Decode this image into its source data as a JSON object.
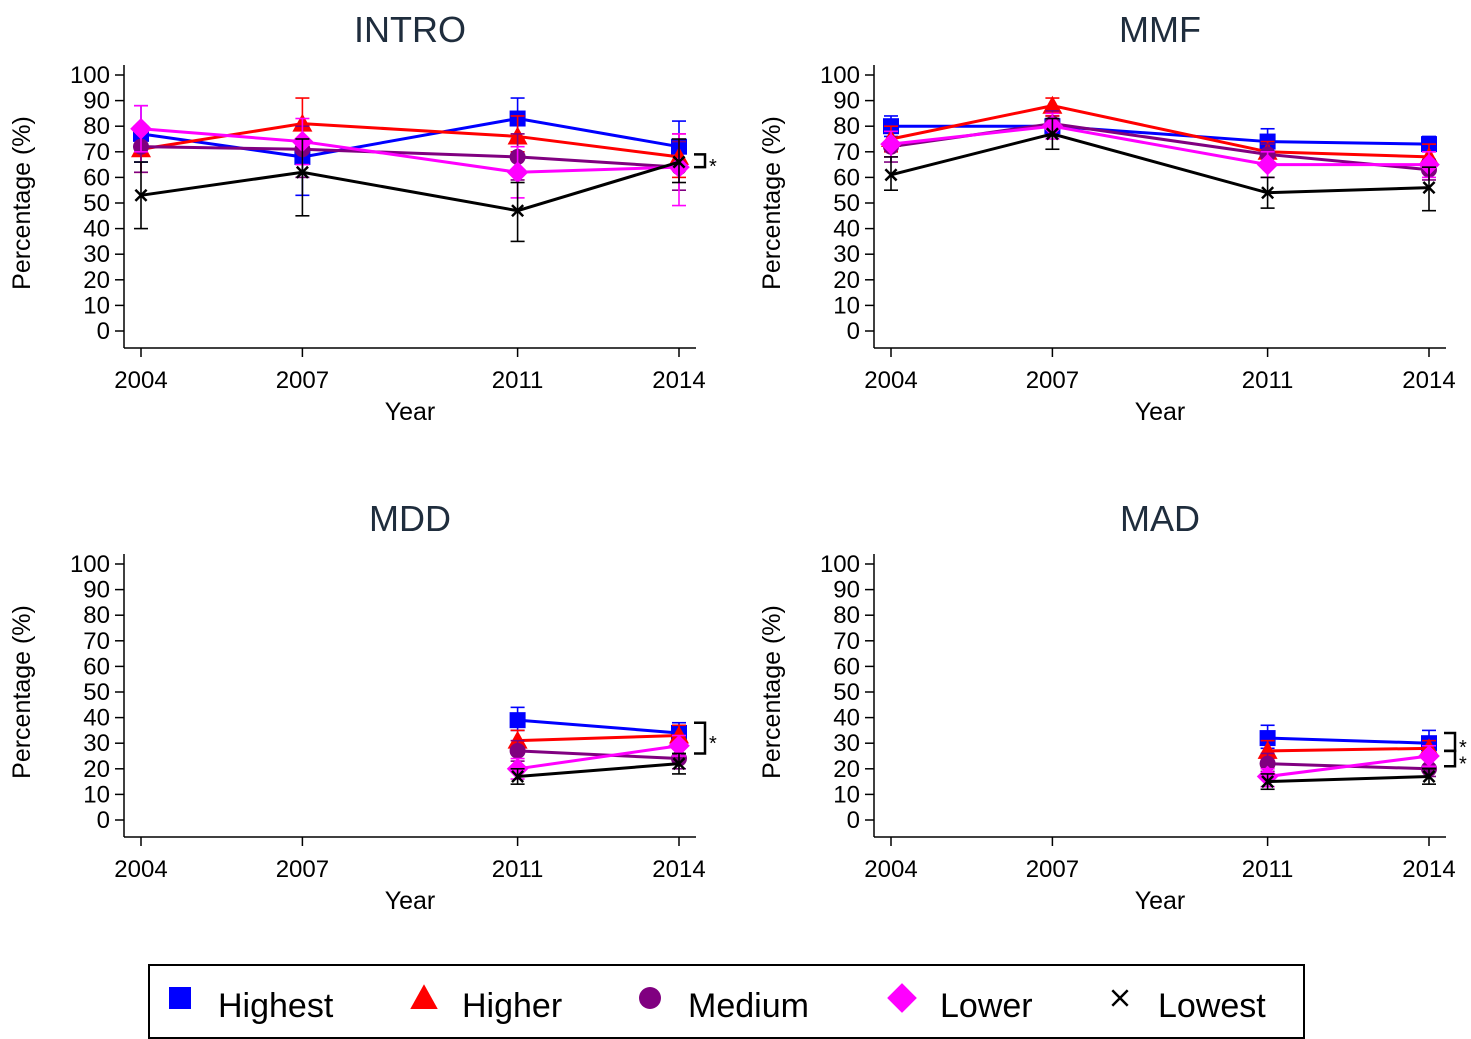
{
  "colors": {
    "Highest": "#0000ff",
    "Higher": "#ff0000",
    "Medium": "#800080",
    "Lower": "#ff00ff",
    "Lowest": "#000000"
  },
  "legend": [
    {
      "name": "Highest",
      "marker": "square"
    },
    {
      "name": "Higher",
      "marker": "triangle"
    },
    {
      "name": "Medium",
      "marker": "circle"
    },
    {
      "name": "Lower",
      "marker": "diamond"
    },
    {
      "name": "Lowest",
      "marker": "x"
    }
  ],
  "chart_data": [
    {
      "type": "line",
      "title": "INTRO",
      "xlabel": "Year",
      "ylabel": "Percentage (%)",
      "x": [
        "2004",
        "2007",
        "2011",
        "2014"
      ],
      "ylim": [
        0,
        100
      ],
      "yticks": [
        0,
        10,
        20,
        30,
        40,
        50,
        60,
        70,
        80,
        90,
        100
      ],
      "series": [
        {
          "name": "Highest",
          "values": [
            77,
            68,
            83,
            72
          ],
          "err": [
            [
              66,
              88
            ],
            [
              53,
              80
            ],
            [
              75,
              91
            ],
            [
              63,
              82
            ]
          ]
        },
        {
          "name": "Higher",
          "values": [
            71,
            81,
            76,
            68
          ],
          "err": [
            [
              62,
              80
            ],
            [
              72,
              91
            ],
            [
              70,
              84
            ],
            [
              60,
              77
            ]
          ]
        },
        {
          "name": "Medium",
          "values": [
            72,
            71,
            68,
            64
          ],
          "err": [
            [
              62,
              80
            ],
            [
              60,
              80
            ],
            [
              59,
              77
            ],
            [
              55,
              74
            ]
          ]
        },
        {
          "name": "Lower",
          "values": [
            79,
            74,
            62,
            64
          ],
          "err": [
            [
              70,
              88
            ],
            [
              65,
              83
            ],
            [
              52,
              72
            ],
            [
              49,
              77
            ]
          ]
        },
        {
          "name": "Lowest",
          "values": [
            53,
            62,
            47,
            66
          ],
          "err": [
            [
              40,
              66
            ],
            [
              45,
              75
            ],
            [
              35,
              58
            ],
            [
              58,
              75
            ]
          ]
        }
      ],
      "significance": [
        {
          "x": "2014",
          "between": [
            69,
            64
          ],
          "label": "*"
        }
      ]
    },
    {
      "type": "line",
      "title": "MMF",
      "xlabel": "Year",
      "ylabel": "Percentage (%)",
      "x": [
        "2004",
        "2007",
        "2011",
        "2014"
      ],
      "ylim": [
        0,
        100
      ],
      "yticks": [
        0,
        10,
        20,
        30,
        40,
        50,
        60,
        70,
        80,
        90,
        100
      ],
      "series": [
        {
          "name": "Highest",
          "values": [
            80,
            80,
            74,
            73
          ],
          "err": [
            [
              76,
              84
            ],
            [
              76,
              84
            ],
            [
              70,
              79
            ],
            [
              70,
              76
            ]
          ]
        },
        {
          "name": "Higher",
          "values": [
            75,
            88,
            70,
            68
          ],
          "err": [
            [
              70,
              80
            ],
            [
              84,
              91
            ],
            [
              66,
              74
            ],
            [
              64,
              73
            ]
          ]
        },
        {
          "name": "Medium",
          "values": [
            72,
            81,
            69,
            63
          ],
          "err": [
            [
              66,
              78
            ],
            [
              76,
              86
            ],
            [
              65,
              73
            ],
            [
              59,
              67
            ]
          ]
        },
        {
          "name": "Lower",
          "values": [
            73,
            80,
            65,
            65
          ],
          "err": [
            [
              68,
              78
            ],
            [
              75,
              85
            ],
            [
              60,
              70
            ],
            [
              60,
              70
            ]
          ]
        },
        {
          "name": "Lowest",
          "values": [
            61,
            77,
            54,
            56
          ],
          "err": [
            [
              55,
              68
            ],
            [
              71,
              83
            ],
            [
              48,
              60
            ],
            [
              47,
              64
            ]
          ]
        }
      ],
      "significance": []
    },
    {
      "type": "line",
      "title": "MDD",
      "xlabel": "Year",
      "ylabel": "Percentage (%)",
      "x": [
        "2004",
        "2007",
        "2011",
        "2014"
      ],
      "ylim": [
        0,
        100
      ],
      "yticks": [
        0,
        10,
        20,
        30,
        40,
        50,
        60,
        70,
        80,
        90,
        100
      ],
      "series": [
        {
          "name": "Highest",
          "values": [
            null,
            null,
            39,
            34
          ],
          "err": [
            null,
            null,
            [
              35,
              44
            ],
            [
              31,
              38
            ]
          ]
        },
        {
          "name": "Higher",
          "values": [
            null,
            null,
            31,
            33
          ],
          "err": [
            null,
            null,
            [
              27,
              35
            ],
            [
              29,
              37
            ]
          ]
        },
        {
          "name": "Medium",
          "values": [
            null,
            null,
            27,
            24
          ],
          "err": [
            null,
            null,
            [
              23,
              31
            ],
            [
              20,
              28
            ]
          ]
        },
        {
          "name": "Lower",
          "values": [
            null,
            null,
            20,
            29
          ],
          "err": [
            null,
            null,
            [
              16,
              24
            ],
            [
              25,
              33
            ]
          ]
        },
        {
          "name": "Lowest",
          "values": [
            null,
            null,
            17,
            22
          ],
          "err": [
            null,
            null,
            [
              14,
              20
            ],
            [
              18,
              26
            ]
          ]
        }
      ],
      "significance": [
        {
          "x": "2014",
          "between": [
            38,
            26
          ],
          "label": "*"
        }
      ]
    },
    {
      "type": "line",
      "title": "MAD",
      "xlabel": "Year",
      "ylabel": "Percentage (%)",
      "x": [
        "2004",
        "2007",
        "2011",
        "2014"
      ],
      "ylim": [
        0,
        100
      ],
      "yticks": [
        0,
        10,
        20,
        30,
        40,
        50,
        60,
        70,
        80,
        90,
        100
      ],
      "series": [
        {
          "name": "Highest",
          "values": [
            null,
            null,
            32,
            30
          ],
          "err": [
            null,
            null,
            [
              28,
              37
            ],
            [
              27,
              35
            ]
          ]
        },
        {
          "name": "Higher",
          "values": [
            null,
            null,
            27,
            28
          ],
          "err": [
            null,
            null,
            [
              24,
              31
            ],
            [
              24,
              31
            ]
          ]
        },
        {
          "name": "Medium",
          "values": [
            null,
            null,
            22,
            20
          ],
          "err": [
            null,
            null,
            [
              19,
              26
            ],
            [
              17,
              24
            ]
          ]
        },
        {
          "name": "Lower",
          "values": [
            null,
            null,
            17,
            25
          ],
          "err": [
            null,
            null,
            [
              13,
              20
            ],
            [
              21,
              29
            ]
          ]
        },
        {
          "name": "Lowest",
          "values": [
            null,
            null,
            15,
            17
          ],
          "err": [
            null,
            null,
            [
              12,
              18
            ],
            [
              14,
              20
            ]
          ]
        }
      ],
      "significance": [
        {
          "x": "2014",
          "between": [
            34,
            27
          ],
          "label": "*"
        },
        {
          "x": "2014",
          "between": [
            27,
            21
          ],
          "label": "*"
        }
      ]
    }
  ]
}
